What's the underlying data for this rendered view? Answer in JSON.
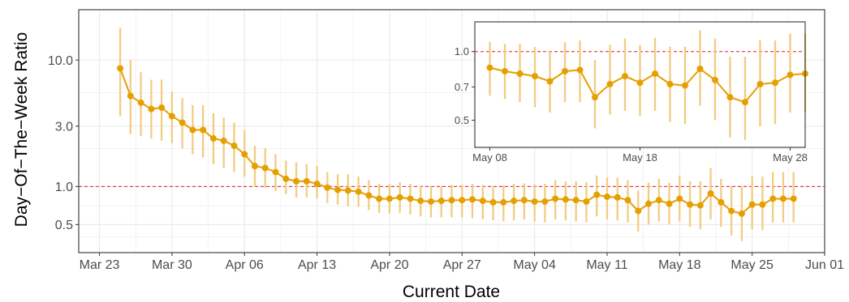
{
  "colors": {
    "series": "#E69F00",
    "interval": "#F2CC82",
    "reference": "#E41A1C",
    "grid": "#EBEBEB",
    "panel_border": "#333333"
  },
  "chart_data": [
    {
      "type": "line",
      "xlabel": "Current Date",
      "ylabel": "Day−Of−The−Week Ratio",
      "x_ticks": [
        "Mar 23",
        "Mar 30",
        "Apr 06",
        "Apr 13",
        "Apr 20",
        "Apr 27",
        "May 04",
        "May 11",
        "May 18",
        "May 25",
        "Jun 01"
      ],
      "y_ticks": [
        "0.5",
        "1.0",
        "3.0",
        "10.0"
      ],
      "y_tick_values": [
        0.5,
        1.0,
        3.0,
        10.0
      ],
      "y_scale": "log",
      "xlim": [
        "2020-03-21",
        "2020-06-01"
      ],
      "ylim": [
        0.3,
        25
      ],
      "reference_line": 1.0,
      "grid": true,
      "x": [
        "2020-03-25",
        "2020-03-26",
        "2020-03-27",
        "2020-03-28",
        "2020-03-29",
        "2020-03-30",
        "2020-03-31",
        "2020-04-01",
        "2020-04-02",
        "2020-04-03",
        "2020-04-04",
        "2020-04-05",
        "2020-04-06",
        "2020-04-07",
        "2020-04-08",
        "2020-04-09",
        "2020-04-10",
        "2020-04-11",
        "2020-04-12",
        "2020-04-13",
        "2020-04-14",
        "2020-04-15",
        "2020-04-16",
        "2020-04-17",
        "2020-04-18",
        "2020-04-19",
        "2020-04-20",
        "2020-04-21",
        "2020-04-22",
        "2020-04-23",
        "2020-04-24",
        "2020-04-25",
        "2020-04-26",
        "2020-04-27",
        "2020-04-28",
        "2020-04-29",
        "2020-04-30",
        "2020-05-01",
        "2020-05-02",
        "2020-05-03",
        "2020-05-04",
        "2020-05-05",
        "2020-05-06",
        "2020-05-07",
        "2020-05-08",
        "2020-05-09",
        "2020-05-10",
        "2020-05-11",
        "2020-05-12",
        "2020-05-13",
        "2020-05-14",
        "2020-05-15",
        "2020-05-16",
        "2020-05-17",
        "2020-05-18",
        "2020-05-19",
        "2020-05-20",
        "2020-05-21",
        "2020-05-22",
        "2020-05-23",
        "2020-05-24",
        "2020-05-25",
        "2020-05-26",
        "2020-05-27",
        "2020-05-28",
        "2020-05-29"
      ],
      "y": [
        8.6,
        5.2,
        4.6,
        4.1,
        4.2,
        3.6,
        3.2,
        2.8,
        2.8,
        2.4,
        2.3,
        2.1,
        1.8,
        1.45,
        1.4,
        1.3,
        1.15,
        1.1,
        1.1,
        1.05,
        0.98,
        0.94,
        0.93,
        0.91,
        0.85,
        0.8,
        0.8,
        0.82,
        0.8,
        0.77,
        0.76,
        0.77,
        0.78,
        0.78,
        0.79,
        0.77,
        0.75,
        0.75,
        0.77,
        0.78,
        0.76,
        0.76,
        0.8,
        0.79,
        0.78,
        0.76,
        0.86,
        0.83,
        0.82,
        0.78,
        0.64,
        0.73,
        0.78,
        0.73,
        0.8,
        0.72,
        0.71,
        0.88,
        0.75,
        0.64,
        0.61,
        0.72,
        0.72,
        0.8,
        0.8,
        0.8
      ],
      "lower": [
        3.6,
        2.6,
        2.5,
        2.4,
        2.3,
        2.2,
        2.0,
        1.8,
        1.7,
        1.5,
        1.4,
        1.3,
        1.2,
        1.0,
        0.98,
        0.92,
        0.87,
        0.82,
        0.82,
        0.8,
        0.74,
        0.72,
        0.7,
        0.69,
        0.65,
        0.62,
        0.61,
        0.62,
        0.6,
        0.58,
        0.57,
        0.57,
        0.57,
        0.57,
        0.56,
        0.55,
        0.54,
        0.53,
        0.54,
        0.55,
        0.53,
        0.52,
        0.55,
        0.54,
        0.53,
        0.52,
        0.58,
        0.55,
        0.54,
        0.52,
        0.44,
        0.5,
        0.53,
        0.5,
        0.53,
        0.48,
        0.46,
        0.55,
        0.48,
        0.41,
        0.37,
        0.46,
        0.45,
        0.52,
        0.52,
        0.52
      ],
      "upper": [
        18.0,
        10.0,
        8.0,
        7.0,
        7.0,
        5.6,
        5.0,
        4.4,
        4.4,
        3.8,
        3.5,
        3.2,
        2.8,
        2.1,
        2.0,
        1.8,
        1.6,
        1.55,
        1.5,
        1.45,
        1.3,
        1.25,
        1.25,
        1.2,
        1.12,
        1.05,
        1.05,
        1.08,
        1.05,
        1.02,
        1.0,
        1.01,
        1.03,
        1.03,
        1.05,
        1.03,
        1.0,
        1.02,
        1.05,
        1.06,
        1.04,
        1.05,
        1.12,
        1.1,
        1.1,
        1.08,
        1.22,
        1.18,
        1.18,
        1.12,
        0.93,
        1.07,
        1.15,
        1.07,
        1.22,
        1.1,
        1.1,
        1.4,
        1.15,
        1.0,
        1.0,
        1.2,
        1.2,
        1.3,
        1.3,
        1.3
      ]
    },
    {
      "type": "line",
      "xlabel": "",
      "ylabel": "",
      "x_ticks": [
        "May 08",
        "May 18",
        "May 28"
      ],
      "y_ticks": [
        "0.5",
        "0.7",
        "1.0"
      ],
      "y_tick_values": [
        0.5,
        0.7,
        1.0
      ],
      "y_scale": "log",
      "xlim": [
        "2020-05-07",
        "2020-05-29"
      ],
      "ylim": [
        0.38,
        1.35
      ],
      "reference_line": 1.0,
      "grid": false,
      "legend": "none",
      "x": [
        "2020-05-08",
        "2020-05-09",
        "2020-05-10",
        "2020-05-11",
        "2020-05-12",
        "2020-05-13",
        "2020-05-14",
        "2020-05-15",
        "2020-05-16",
        "2020-05-17",
        "2020-05-18",
        "2020-05-19",
        "2020-05-20",
        "2020-05-21",
        "2020-05-22",
        "2020-05-23",
        "2020-05-24",
        "2020-05-25",
        "2020-05-26",
        "2020-05-27",
        "2020-05-28",
        "2020-05-29"
      ],
      "y": [
        0.85,
        0.82,
        0.8,
        0.78,
        0.74,
        0.82,
        0.83,
        0.63,
        0.72,
        0.78,
        0.73,
        0.8,
        0.72,
        0.71,
        0.84,
        0.75,
        0.63,
        0.6,
        0.72,
        0.73,
        0.79,
        0.8
      ],
      "lower": [
        0.64,
        0.62,
        0.6,
        0.57,
        0.54,
        0.6,
        0.6,
        0.46,
        0.53,
        0.55,
        0.52,
        0.55,
        0.49,
        0.48,
        0.58,
        0.5,
        0.42,
        0.41,
        0.47,
        0.48,
        0.54,
        0.54
      ],
      "upper": [
        1.1,
        1.08,
        1.08,
        1.05,
        1.0,
        1.1,
        1.12,
        0.92,
        1.07,
        1.14,
        1.07,
        1.15,
        1.05,
        1.05,
        1.24,
        1.14,
        0.95,
        0.95,
        1.12,
        1.12,
        1.2,
        1.2
      ]
    }
  ]
}
